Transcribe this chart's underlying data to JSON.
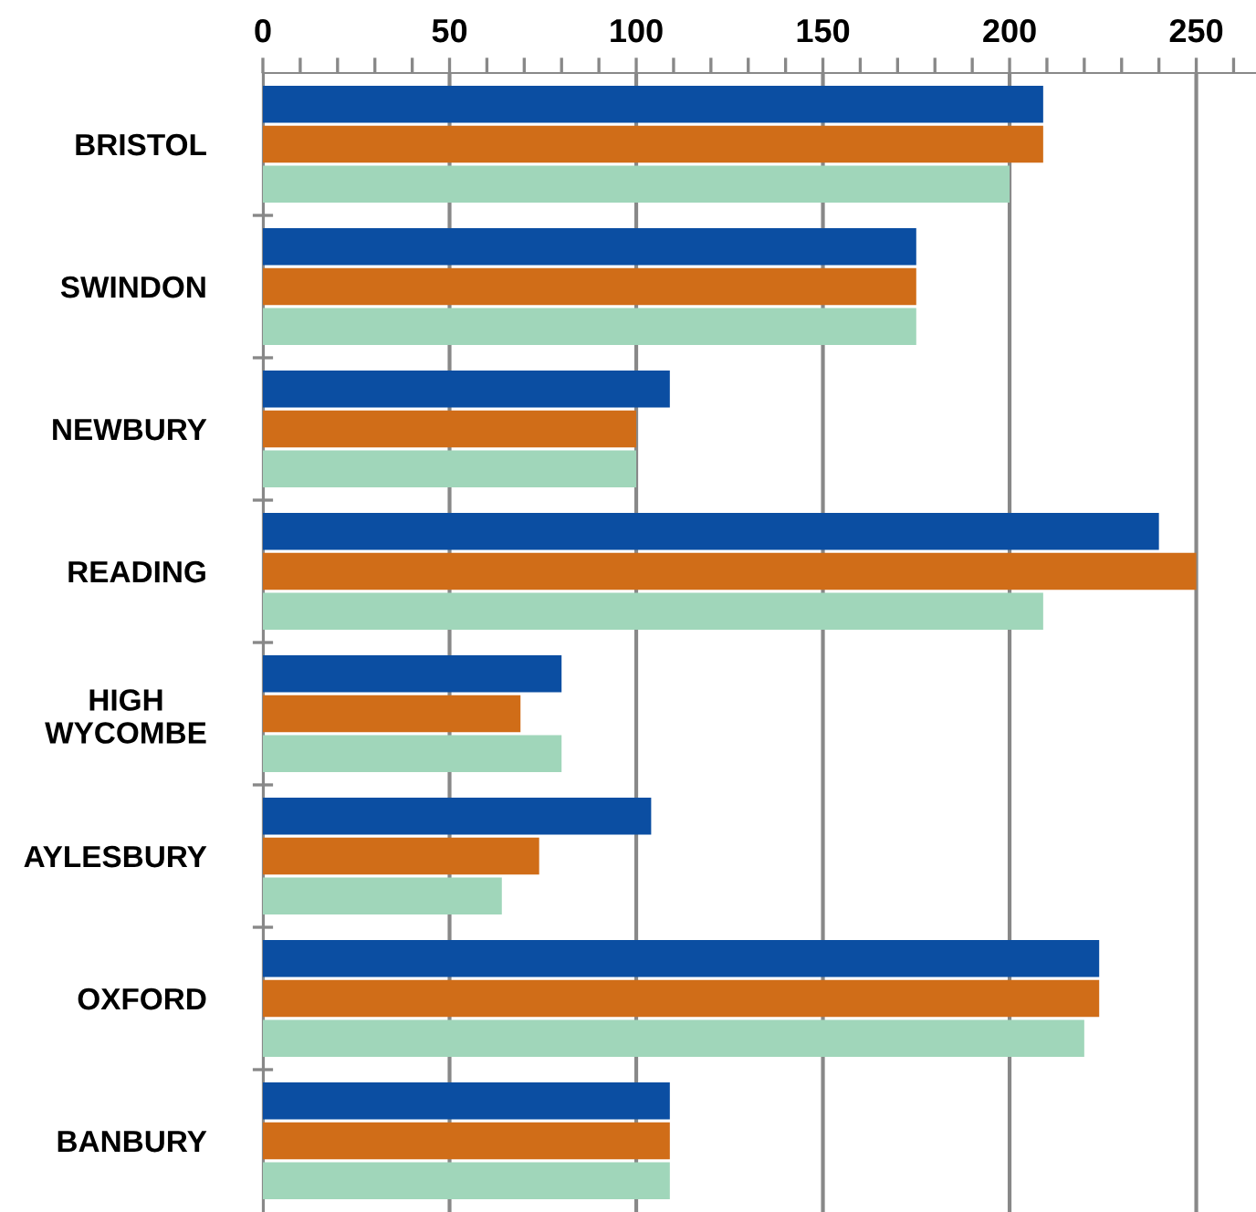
{
  "chart_data": {
    "type": "bar",
    "orientation": "horizontal",
    "categories": [
      "BRISTOL",
      "SWINDON",
      "NEWBURY",
      "READING",
      "HIGH\nWYCOMBE",
      "AYLESBURY",
      "OXFORD",
      "BANBURY"
    ],
    "series": [
      {
        "color": "#0b4ea2",
        "values": [
          209,
          175,
          109,
          240,
          80,
          104,
          224,
          109
        ]
      },
      {
        "color": "#d06d18",
        "values": [
          209,
          175,
          100,
          250,
          69,
          74,
          224,
          109
        ]
      },
      {
        "color": "#a0d6ba",
        "values": [
          200,
          175,
          100,
          209,
          80,
          64,
          220,
          109
        ]
      }
    ],
    "xlim": [
      0,
      266
    ],
    "xticks": [
      0,
      {
        "value": 10,
        "label": null
      },
      {
        "value": 20,
        "label": null
      },
      {
        "value": 30,
        "label": null
      },
      {
        "value": 40,
        "label": null
      },
      50,
      {
        "value": 60,
        "label": null
      },
      {
        "value": 70,
        "label": null
      },
      {
        "value": 80,
        "label": null
      },
      {
        "value": 90,
        "label": null
      },
      100,
      {
        "value": 110,
        "label": null
      },
      {
        "value": 120,
        "label": null
      },
      {
        "value": 130,
        "label": null
      },
      {
        "value": 140,
        "label": null
      },
      150,
      {
        "value": 160,
        "label": null
      },
      {
        "value": 170,
        "label": null
      },
      {
        "value": 180,
        "label": null
      },
      {
        "value": 190,
        "label": null
      },
      200,
      {
        "value": 210,
        "label": null
      },
      {
        "value": 220,
        "label": null
      },
      {
        "value": 230,
        "label": null
      },
      {
        "value": 240,
        "label": null
      },
      250,
      {
        "value": 260,
        "label": null
      }
    ],
    "grid": "x"
  }
}
